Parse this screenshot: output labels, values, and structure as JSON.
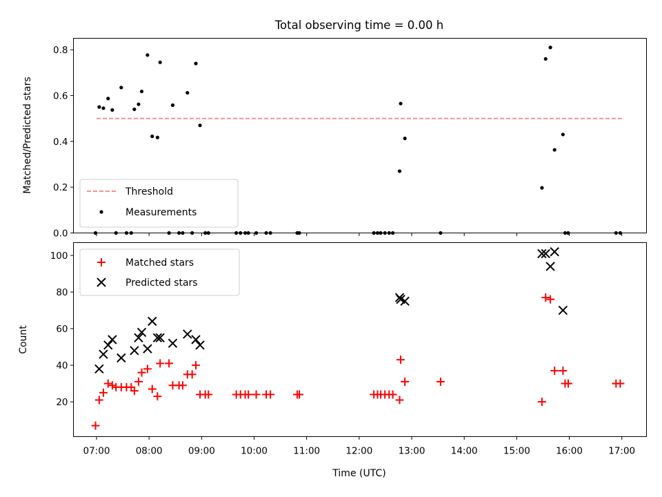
{
  "chart_data": [
    {
      "type": "line+scatter",
      "title": "Total observing time = 0.00 h",
      "ylabel": "Matched/Predicted stars",
      "xlabel": "",
      "xlim": [
        6.56,
        17.47
      ],
      "ylim": [
        0.0,
        0.85
      ],
      "yticks": [
        0.0,
        0.2,
        0.4,
        0.6,
        0.8
      ],
      "ytick_labels": [
        "0.0",
        "0.2",
        "0.4",
        "0.6",
        "0.8"
      ],
      "legend_position": "lower-left",
      "threshold": {
        "name": "Threshold",
        "x": [
          7.0,
          17.0
        ],
        "y": 0.5,
        "color": "#ff7f7f",
        "style": "dashed"
      },
      "series": [
        {
          "name": "Measurements",
          "color": "#000000",
          "marker": "dot",
          "x": [
            7.05,
            7.13,
            7.22,
            7.3,
            7.47,
            7.72,
            7.8,
            7.86,
            7.97,
            8.06,
            8.16,
            8.21,
            8.45,
            8.73,
            8.89,
            8.97,
            15.48,
            15.55,
            15.64,
            15.72,
            15.88,
            12.77,
            12.79,
            12.87,
            6.98,
            7.37,
            7.57,
            7.66,
            8.38,
            8.57,
            8.64,
            8.82,
            9.07,
            9.13,
            9.66,
            9.74,
            9.83,
            9.89,
            10.04,
            10.23,
            10.31,
            10.82,
            10.86,
            12.28,
            12.35,
            12.41,
            12.49,
            12.57,
            12.64,
            13.55,
            15.92,
            15.98,
            16.89,
            16.97
          ],
          "y": [
            0.55,
            0.545,
            0.587,
            0.537,
            0.635,
            0.54,
            0.562,
            0.618,
            0.777,
            0.422,
            0.417,
            0.745,
            0.558,
            0.612,
            0.74,
            0.47,
            0.197,
            0.76,
            0.81,
            0.363,
            0.43,
            0.27,
            0.565,
            0.413,
            0.0,
            0.0,
            0.0,
            0.0,
            0.0,
            0.0,
            0.0,
            0.0,
            0.0,
            0.0,
            0.0,
            0.0,
            0.0,
            0.0,
            0.0,
            0.0,
            0.0,
            0.0,
            0.0,
            0.0,
            0.0,
            0.0,
            0.0,
            0.0,
            0.0,
            0.0,
            0.0,
            0.0,
            0.0,
            0.0
          ]
        }
      ]
    },
    {
      "type": "scatter",
      "ylabel": "Count",
      "xlabel": "Time (UTC)",
      "xlim": [
        6.56,
        17.47
      ],
      "ylim": [
        1.0,
        107.0
      ],
      "yticks": [
        20,
        40,
        60,
        80,
        100
      ],
      "ytick_labels": [
        "20",
        "40",
        "60",
        "80",
        "100"
      ],
      "xticks": [
        7,
        8,
        9,
        10,
        11,
        12,
        13,
        14,
        15,
        16,
        17
      ],
      "xtick_labels": [
        "07:00",
        "08:00",
        "09:00",
        "10:00",
        "11:00",
        "12:00",
        "13:00",
        "14:00",
        "15:00",
        "16:00",
        "17:00"
      ],
      "legend_position": "upper-left",
      "series": [
        {
          "name": "Matched stars",
          "color": "#ff0000",
          "marker": "plus",
          "x": [
            6.98,
            7.05,
            7.13,
            7.22,
            7.3,
            7.37,
            7.47,
            7.57,
            7.66,
            7.72,
            7.8,
            7.86,
            7.97,
            8.06,
            8.16,
            8.21,
            8.38,
            8.45,
            8.57,
            8.64,
            8.73,
            8.82,
            8.89,
            8.97,
            9.07,
            9.13,
            9.66,
            9.74,
            9.83,
            9.89,
            10.04,
            10.23,
            10.31,
            10.82,
            10.86,
            12.28,
            12.35,
            12.41,
            12.49,
            12.57,
            12.64,
            12.77,
            12.79,
            12.87,
            13.55,
            15.48,
            15.55,
            15.64,
            15.72,
            15.88,
            15.92,
            15.98,
            16.89,
            16.97
          ],
          "y": [
            7,
            21,
            25,
            30,
            29,
            28,
            28,
            28,
            28,
            26,
            31,
            36,
            38,
            27,
            23,
            41,
            41,
            29,
            29,
            29,
            35,
            35,
            40,
            24,
            24,
            24,
            24,
            24,
            24,
            24,
            24,
            24,
            24,
            24,
            24,
            24,
            24,
            24,
            24,
            24,
            24,
            21,
            43,
            31,
            31,
            20,
            77,
            76,
            37,
            37,
            30,
            30,
            30,
            30
          ]
        },
        {
          "name": "Predicted stars",
          "color": "#000000",
          "marker": "x",
          "x": [
            7.05,
            7.13,
            7.22,
            7.3,
            7.47,
            7.72,
            7.8,
            7.86,
            7.97,
            8.06,
            8.16,
            8.21,
            8.45,
            8.73,
            8.89,
            8.97,
            12.77,
            12.79,
            12.87,
            15.48,
            15.55,
            15.64,
            15.72,
            15.88
          ],
          "y": [
            38,
            46,
            51,
            54,
            44,
            48,
            55,
            58,
            49,
            64,
            55,
            55,
            52,
            57,
            54,
            51,
            77,
            76,
            75,
            101,
            101,
            94,
            102,
            70
          ]
        }
      ]
    }
  ]
}
